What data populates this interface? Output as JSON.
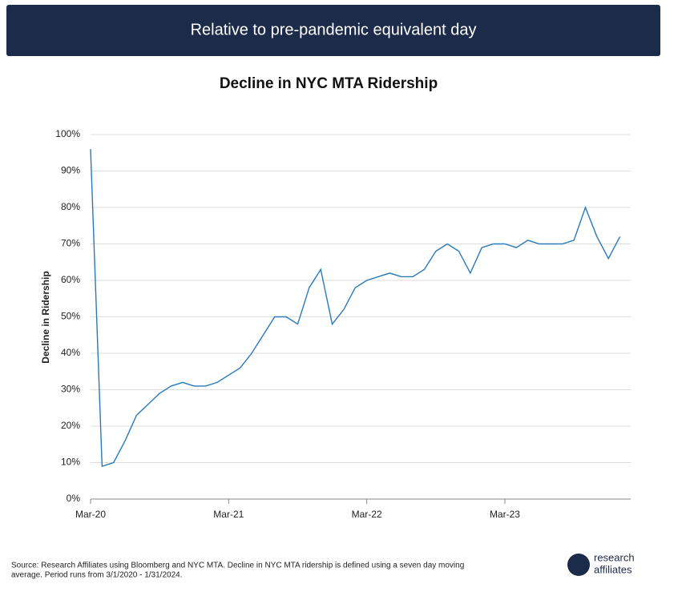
{
  "header": {
    "title": "Relative to pre-pandemic equivalent day"
  },
  "chart_data": {
    "type": "line",
    "title": "Decline in NYC MTA Ridership",
    "y_label": "Decline in Ridership",
    "x": [
      "Mar-20",
      "Apr-20",
      "May-20",
      "Jun-20",
      "Jul-20",
      "Aug-20",
      "Sep-20",
      "Oct-20",
      "Nov-20",
      "Dec-20",
      "Jan-21",
      "Feb-21",
      "Mar-21",
      "Apr-21",
      "May-21",
      "Jun-21",
      "Jul-21",
      "Aug-21",
      "Sep-21",
      "Oct-21",
      "Nov-21",
      "Dec-21",
      "Jan-22",
      "Feb-22",
      "Mar-22",
      "Apr-22",
      "May-22",
      "Jun-22",
      "Jul-22",
      "Aug-22",
      "Sep-22",
      "Oct-22",
      "Nov-22",
      "Dec-22",
      "Jan-23",
      "Feb-23",
      "Mar-23",
      "Apr-23",
      "May-23",
      "Jun-23",
      "Jul-23",
      "Aug-23",
      "Sep-23",
      "Oct-23",
      "Nov-23",
      "Dec-23",
      "Jan-24"
    ],
    "series": [
      {
        "name": "Decline in NYC MTA Ridership",
        "color": "#2a7ab8",
        "values": [
          96,
          9,
          10,
          16,
          23,
          26,
          29,
          31,
          32,
          31,
          31,
          32,
          34,
          36,
          40,
          45,
          50,
          50,
          48,
          58,
          63,
          48,
          52,
          58,
          60,
          61,
          62,
          61,
          61,
          63,
          68,
          70,
          68,
          62,
          69,
          70,
          70,
          69,
          71,
          70,
          70,
          70,
          71,
          80,
          72,
          66,
          72
        ]
      }
    ],
    "xticks": [
      "Mar-20",
      "Mar-21",
      "Mar-22",
      "Mar-23"
    ],
    "ylim": [
      0,
      100
    ],
    "yticks": [
      {
        "value": 0,
        "label": "0%"
      },
      {
        "value": 10,
        "label": "10%"
      },
      {
        "value": 20,
        "label": "20%"
      },
      {
        "value": 30,
        "label": "30%"
      },
      {
        "value": 40,
        "label": "40%"
      },
      {
        "value": 50,
        "label": "50%"
      },
      {
        "value": 60,
        "label": "60%"
      },
      {
        "value": 70,
        "label": "70%"
      },
      {
        "value": 80,
        "label": "80%"
      },
      {
        "value": 90,
        "label": "90%"
      },
      {
        "value": 100,
        "label": "100%"
      }
    ],
    "grid": true
  },
  "footer": {
    "source": [
      "Source: Research Affiliates using Bloomberg and NYC MTA.  Decline in NYC MTA ridership is defined using a seven day moving",
      "average. Period runs from 3/1/2020 - 1/31/2024."
    ],
    "logo": [
      "research",
      "affiliates"
    ]
  }
}
